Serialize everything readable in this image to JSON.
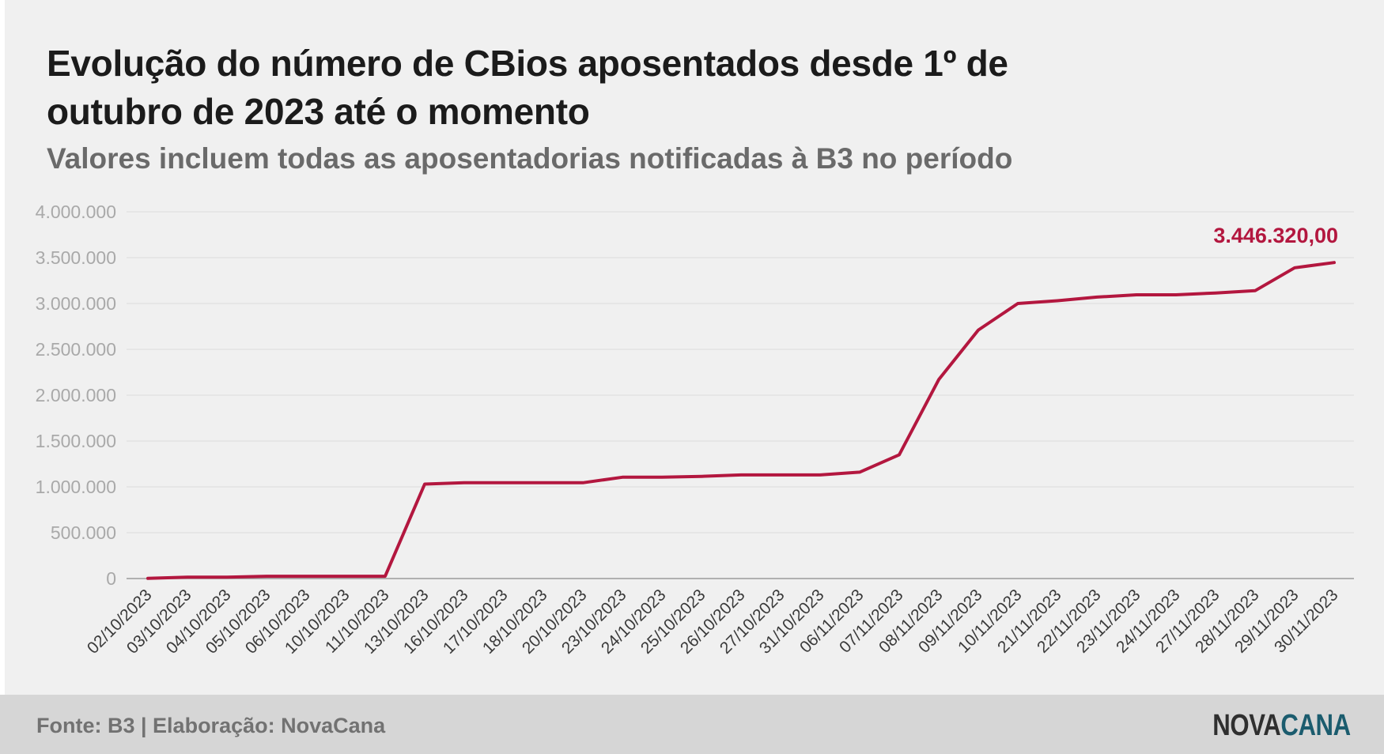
{
  "title": "Evolução do número de CBios aposentados desde 1º de outubro de 2023 até o momento",
  "subtitle": "Valores incluem todas as aposentadorias notificadas à B3 no período",
  "footer": {
    "source": "Fonte: B3 | Elaboração: NovaCana",
    "logo_part1": "NOVA",
    "logo_part2": "CANA"
  },
  "colors": {
    "line": "#b3173f",
    "background": "#f0f0f0",
    "footer_background": "#d6d6d6",
    "logo_accent": "#1b5c6e"
  },
  "chart_data": {
    "type": "line",
    "title": "Evolução do número de CBios aposentados desde 1º de outubro de 2023 até o momento",
    "subtitle": "Valores incluem todas as aposentadorias notificadas à B3 no período",
    "xlabel": "",
    "ylabel": "",
    "ylim": [
      0,
      4000000
    ],
    "yticks": [
      0,
      500000,
      1000000,
      1500000,
      2000000,
      2500000,
      3000000,
      3500000,
      4000000
    ],
    "ytick_labels": [
      "0",
      "500.000",
      "1.000.000",
      "1.500.000",
      "2.000.000",
      "2.500.000",
      "3.000.000",
      "3.500.000",
      "4.000.000"
    ],
    "grid": true,
    "legend": "none",
    "categories": [
      "02/10/2023",
      "03/10/2023",
      "04/10/2023",
      "05/10/2023",
      "06/10/2023",
      "10/10/2023",
      "11/10/2023",
      "13/10/2023",
      "16/10/2023",
      "17/10/2023",
      "18/10/2023",
      "20/10/2023",
      "23/10/2023",
      "24/10/2023",
      "25/10/2023",
      "26/10/2023",
      "27/10/2023",
      "31/10/2023",
      "06/11/2023",
      "07/11/2023",
      "08/11/2023",
      "09/11/2023",
      "10/11/2023",
      "21/11/2023",
      "22/11/2023",
      "23/11/2023",
      "24/11/2023",
      "27/11/2023",
      "28/11/2023",
      "29/11/2023",
      "30/11/2023"
    ],
    "series": [
      {
        "values": [
          2000,
          15000,
          15000,
          25000,
          25000,
          25000,
          25000,
          1030000,
          1045000,
          1045000,
          1045000,
          1045000,
          1105000,
          1105000,
          1115000,
          1130000,
          1130000,
          1130000,
          1160000,
          1350000,
          2170000,
          2710000,
          3000000,
          3030000,
          3070000,
          3095000,
          3095000,
          3115000,
          3140000,
          3390000,
          3446320
        ]
      }
    ],
    "annotations": [
      {
        "category": "30/11/2023",
        "value": 3446320,
        "text": "3.446.320,00"
      }
    ]
  }
}
